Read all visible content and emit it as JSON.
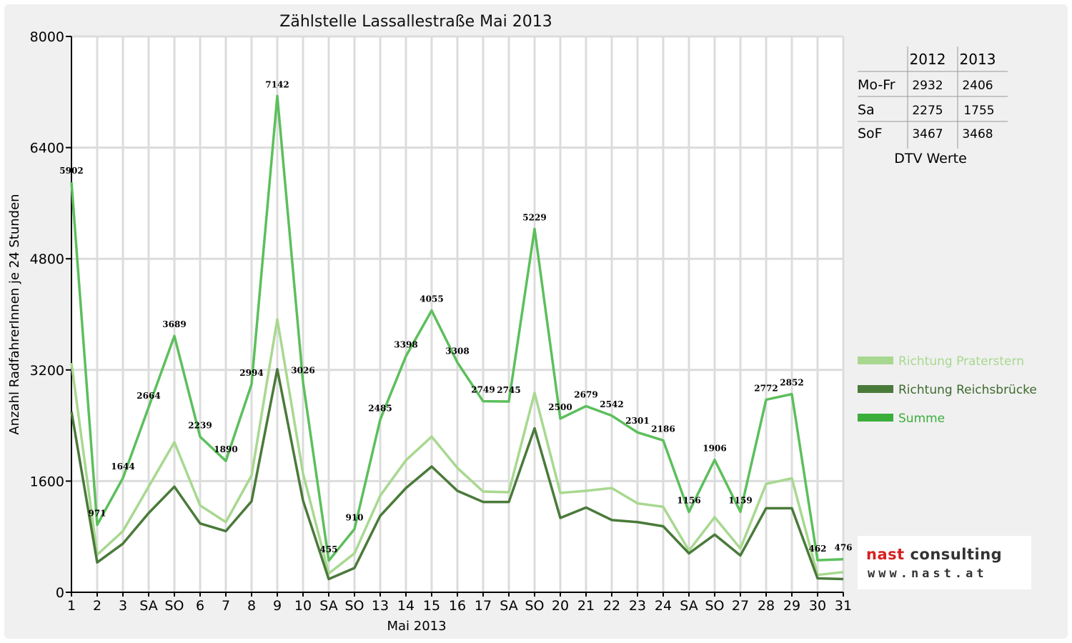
{
  "chart_data": {
    "type": "line",
    "title": "Zählstelle Lassallestraße Mai 2013",
    "xlabel": "Mai 2013",
    "ylabel": "Anzahl RadfahrerInnen je 24 Stunden",
    "ylim": [
      0,
      8000
    ],
    "yticks": [
      "0",
      "1600",
      "3200",
      "4800",
      "6400",
      "8000"
    ],
    "categories": [
      "1",
      "2",
      "3",
      "SA",
      "SO",
      "6",
      "7",
      "8",
      "9",
      "10",
      "SA",
      "SO",
      "13",
      "14",
      "15",
      "16",
      "17",
      "SA",
      "SO",
      "20",
      "21",
      "22",
      "23",
      "24",
      "SA",
      "SO",
      "27",
      "28",
      "29",
      "30",
      "31"
    ],
    "category_colors": [
      "#e00000",
      "#000000",
      "#000000",
      "#000000",
      "#e00000",
      "#000000",
      "#000000",
      "#000000",
      "#e00000",
      "#000000",
      "#000000",
      "#e00000",
      "#000000",
      "#000000",
      "#000000",
      "#000000",
      "#000000",
      "#000000",
      "#e00000",
      "#e00000",
      "#000000",
      "#000000",
      "#000000",
      "#000000",
      "#000000",
      "#e00000",
      "#000000",
      "#000000",
      "#000000",
      "#e00000",
      "#000000"
    ],
    "grid": "vertical",
    "legend_position": "right",
    "series": [
      {
        "name": "Richtung Praterstern",
        "color": "#a8d890",
        "values": [
          3300,
          540,
          880,
          1520,
          2160,
          1250,
          1010,
          1680,
          3930,
          1710,
          270,
          560,
          1390,
          1900,
          2240,
          1790,
          1450,
          1440,
          2870,
          1430,
          1460,
          1500,
          1280,
          1230,
          600,
          1080,
          630,
          1560,
          1640,
          250,
          290
        ]
      },
      {
        "name": "Richtung Reichsbrücke",
        "color": "#4a7a3a",
        "values": [
          2600,
          430,
          700,
          1140,
          1520,
          990,
          880,
          1310,
          3210,
          1320,
          190,
          350,
          1100,
          1500,
          1810,
          1460,
          1300,
          1300,
          2360,
          1070,
          1220,
          1040,
          1010,
          950,
          560,
          830,
          530,
          1210,
          1210,
          200,
          190
        ]
      },
      {
        "name": "Summe",
        "color": "#5cbf5c",
        "values": [
          5902,
          971,
          1644,
          2664,
          3689,
          2239,
          1890,
          2994,
          7142,
          3026,
          455,
          910,
          2485,
          3398,
          4055,
          3308,
          2749,
          2745,
          5229,
          2500,
          2679,
          2542,
          2301,
          2186,
          1156,
          1906,
          1159,
          2772,
          2852,
          462,
          476
        ],
        "data_labels": [
          "5902",
          "971",
          "1644",
          "2664",
          "3689",
          "2239",
          "1890",
          "2994",
          "7142",
          "3026",
          "455",
          "910",
          "2485",
          "3398",
          "4055",
          "3308",
          "2749",
          "2745",
          "5229",
          "2500",
          "2679",
          "2542",
          "2301",
          "2186",
          "1156",
          "1906",
          "1159",
          "2772",
          "2852",
          "462",
          "476"
        ]
      }
    ]
  },
  "dtv_table": {
    "caption": "DTV Werte",
    "columns": [
      "2012",
      "2013"
    ],
    "rows": [
      {
        "label": "Mo-Fr",
        "v2012": "2932",
        "v2013": "2406"
      },
      {
        "label": "Sa",
        "v2012": "2275",
        "v2013": "1755"
      },
      {
        "label": "SoF",
        "v2012": "3467",
        "v2013": "3468"
      }
    ]
  },
  "logo": {
    "brand": "nast",
    "rest": " consulting",
    "url": "www.nast.at"
  },
  "colors": {
    "weekend_label": "#e00000",
    "grid": "#dcdcdc",
    "background": "#f0f0f0"
  }
}
